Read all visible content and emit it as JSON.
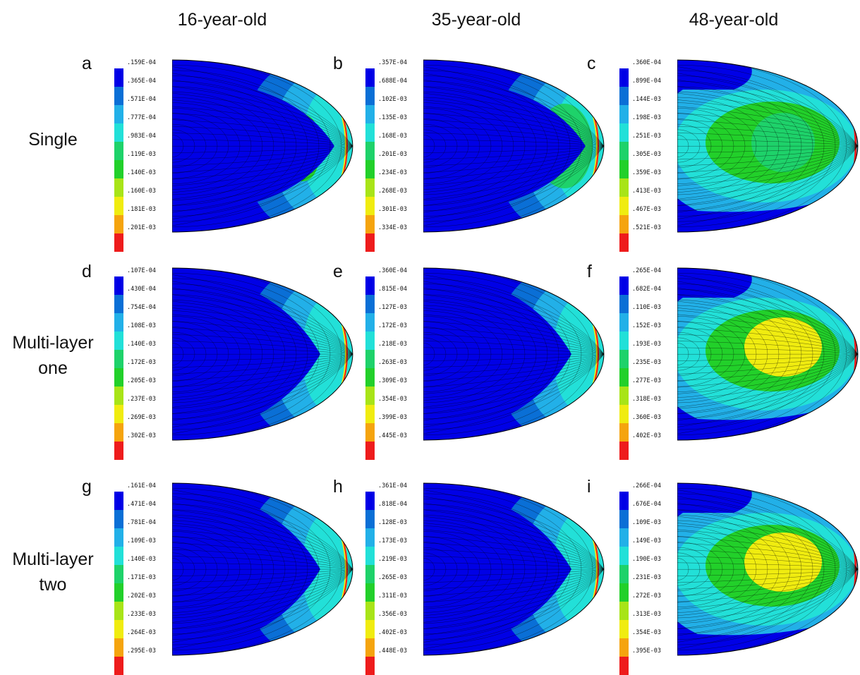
{
  "columns": [
    "16-year-old",
    "35-year-old",
    "48-year-old"
  ],
  "rows": [
    [
      "Single"
    ],
    [
      "Multi-layer",
      "one"
    ],
    [
      "Multi-layer",
      "two"
    ]
  ],
  "palette": [
    "#0000e6",
    "#0a6fd6",
    "#22b0e8",
    "#22e0d8",
    "#1ed26a",
    "#22d02a",
    "#a8e418",
    "#f0ec10",
    "#f5a40e",
    "#ee1c1c"
  ],
  "panels": [
    {
      "letter": "a",
      "levels": [
        ".159E-04",
        ".365E-04",
        ".571E-04",
        ".777E-04",
        ".983E-04",
        ".119E-03",
        ".140E-03",
        ".160E-03",
        ".181E-03",
        ".201E-03"
      ],
      "pattern": "young"
    },
    {
      "letter": "b",
      "levels": [
        ".357E-04",
        ".688E-04",
        ".102E-03",
        ".135E-03",
        ".168E-03",
        ".201E-03",
        ".234E-03",
        ".268E-03",
        ".301E-03",
        ".334E-03"
      ],
      "pattern": "mid"
    },
    {
      "letter": "c",
      "levels": [
        ".360E-04",
        ".899E-04",
        ".144E-03",
        ".198E-03",
        ".251E-03",
        ".305E-03",
        ".359E-03",
        ".413E-03",
        ".467E-03",
        ".521E-03"
      ],
      "pattern": "old1"
    },
    {
      "letter": "d",
      "levels": [
        ".107E-04",
        ".430E-04",
        ".754E-04",
        ".108E-03",
        ".140E-03",
        ".172E-03",
        ".205E-03",
        ".237E-03",
        ".269E-03",
        ".302E-03"
      ],
      "pattern": "young2"
    },
    {
      "letter": "e",
      "levels": [
        ".360E-04",
        ".815E-04",
        ".127E-03",
        ".172E-03",
        ".218E-03",
        ".263E-03",
        ".309E-03",
        ".354E-03",
        ".399E-03",
        ".445E-03"
      ],
      "pattern": "mid2"
    },
    {
      "letter": "f",
      "levels": [
        ".265E-04",
        ".682E-04",
        ".110E-03",
        ".152E-03",
        ".193E-03",
        ".235E-03",
        ".277E-03",
        ".318E-03",
        ".360E-03",
        ".402E-03"
      ],
      "pattern": "old2"
    },
    {
      "letter": "g",
      "levels": [
        ".161E-04",
        ".471E-04",
        ".781E-04",
        ".109E-03",
        ".140E-03",
        ".171E-03",
        ".202E-03",
        ".233E-03",
        ".264E-03",
        ".295E-03"
      ],
      "pattern": "young2"
    },
    {
      "letter": "h",
      "levels": [
        ".361E-04",
        ".818E-04",
        ".128E-03",
        ".173E-03",
        ".219E-03",
        ".265E-03",
        ".311E-03",
        ".356E-03",
        ".402E-03",
        ".448E-03"
      ],
      "pattern": "mid2"
    },
    {
      "letter": "i",
      "levels": [
        ".266E-04",
        ".676E-04",
        ".109E-03",
        ".149E-03",
        ".190E-03",
        ".231E-03",
        ".272E-03",
        ".313E-03",
        ".354E-03",
        ".395E-03"
      ],
      "pattern": "old2"
    }
  ]
}
